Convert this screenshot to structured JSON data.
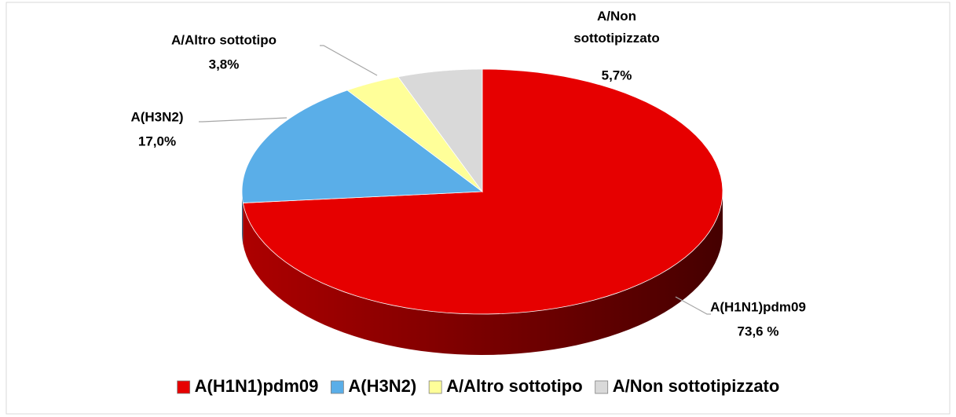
{
  "chart_data": {
    "type": "pie3d",
    "categories": [
      "A(H1N1)pdm09",
      "A(H3N2)",
      "A/Altro sottotipo",
      "A/Non sottotipizzato"
    ],
    "values": [
      73.6,
      17.0,
      3.8,
      5.7
    ],
    "value_labels": [
      "73,6 %",
      "17,0%",
      "3,8%",
      "5,7%"
    ],
    "colors": [
      "#e60000",
      "#5aaee8",
      "#ffff99",
      "#d9d9d9"
    ],
    "legend": "bottom"
  }
}
